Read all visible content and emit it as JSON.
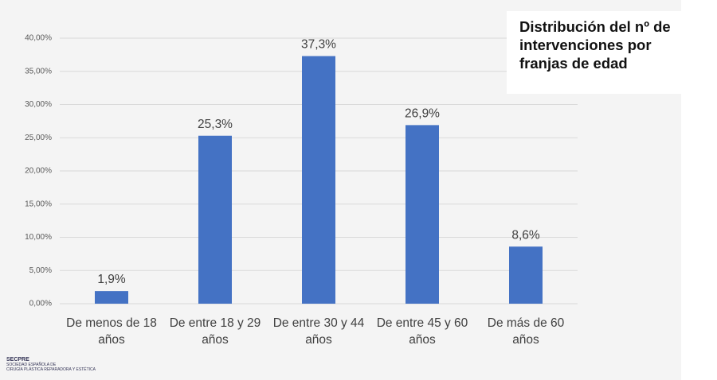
{
  "chart_data": {
    "type": "bar",
    "title": "Distribución del nº de intervenciones por franjas de edad",
    "categories": [
      "De menos de 18 años",
      "De entre 18 y 29 años",
      "De entre 30 y 44 años",
      "De entre 45 y 60 años",
      "De más de 60 años"
    ],
    "values": [
      1.9,
      25.3,
      37.3,
      26.9,
      8.6
    ],
    "value_labels": [
      "1,9%",
      "25,3%",
      "37,3%",
      "26,9%",
      "8,6%"
    ],
    "color": "#4472c4",
    "ylim": [
      0,
      40
    ],
    "yticks": [
      {
        "value": 0,
        "label": "0,00%"
      },
      {
        "value": 5,
        "label": "5,00%"
      },
      {
        "value": 10,
        "label": "10,00%"
      },
      {
        "value": 15,
        "label": "15,00%"
      },
      {
        "value": 20,
        "label": "20,00%"
      },
      {
        "value": 25,
        "label": "25,00%"
      },
      {
        "value": 30,
        "label": "30,00%"
      },
      {
        "value": 35,
        "label": "35,00%"
      },
      {
        "value": 40,
        "label": "40,00%"
      }
    ],
    "grid": true
  },
  "logo": {
    "name": "SECPRE",
    "line1": "SOCIEDAD ESPAÑOLA DE",
    "line2": "CIRUGÍA PLÁSTICA REPARADORA Y ESTÉTICA"
  }
}
